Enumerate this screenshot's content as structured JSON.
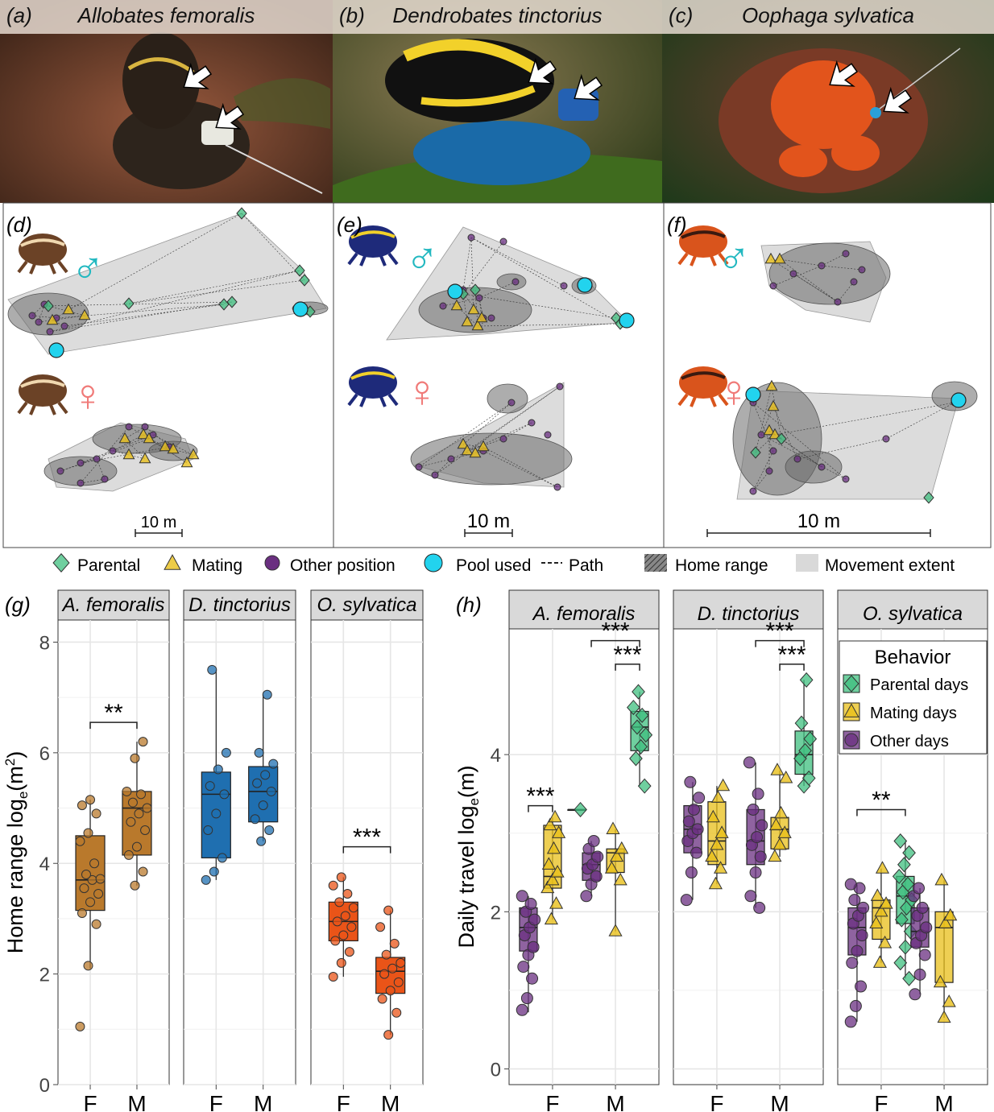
{
  "photo_panels": [
    {
      "label": "(a)",
      "species": "Allobates femoralis",
      "bg": "#7a4a35",
      "frog": "#2d241c",
      "accent": "#d9b540"
    },
    {
      "label": "(b)",
      "species": "Dendrobates tinctorius",
      "bg": "#4a6a2a",
      "frog": "#111111",
      "accent": "#f2d12a"
    },
    {
      "label": "(c)",
      "species": "Oophaga sylvatica",
      "bg": "#5b3a26",
      "frog": "#e2541c",
      "accent": "#1f1f1f"
    }
  ],
  "map_panels": [
    {
      "label": "(d)",
      "scale": "10 m",
      "male_symbol": "♂",
      "female_symbol": "♀",
      "frog_color": "#6b4226",
      "stripe": "#f0d8b0"
    },
    {
      "label": "(e)",
      "scale": "10 m",
      "male_symbol": "♂",
      "female_symbol": "♀",
      "frog_color": "#1e2a7a",
      "stripe": "#f2d12a"
    },
    {
      "label": "(f)",
      "scale": "10 m",
      "male_symbol": "♂",
      "female_symbol": "♀",
      "frog_color": "#d9541c",
      "stripe": "#3a1a10"
    }
  ],
  "legend": {
    "items": [
      "Parental",
      "Mating",
      "Other position",
      "Pool used",
      "Path",
      "Home range",
      "Movement extent"
    ]
  },
  "colors": {
    "parental": "#3fbf7f",
    "mating": "#e8bf1a",
    "other": "#6a2f80",
    "pool": "#22d3ee",
    "male_symbol": "#22b8c0",
    "female_symbol": "#f07a78",
    "femoralis": "#b9792c",
    "tinctorius": "#1f6fb0",
    "sylvatica": "#ea5418",
    "strip": "#d9d9d9",
    "grid": "#e6e6e6"
  },
  "chart_data": [
    {
      "panel": "(g)",
      "type": "box",
      "ylabel": "Home range log",
      "ylabel_sub": "e",
      "ylabel_unit": "(m",
      "ylabel_sup": "2",
      "ylabel_end": ")",
      "ylim": [
        0,
        8.4
      ],
      "yticks": [
        0,
        2,
        4,
        6,
        8
      ],
      "categories": [
        "F",
        "M"
      ],
      "facets": [
        {
          "title": "A. femoralis",
          "color": "#b9792c",
          "boxes": [
            {
              "x": "F",
              "q1": 3.15,
              "median": 3.7,
              "q3": 4.5,
              "whisker_low": 2.1,
              "whisker_high": 5.15,
              "points": [
                1.05,
                2.15,
                2.9,
                3.1,
                3.3,
                3.45,
                3.55,
                3.7,
                3.72,
                3.8,
                4.0,
                4.4,
                4.55,
                4.9,
                5.05,
                5.15
              ]
            },
            {
              "x": "M",
              "q1": 4.15,
              "median": 5.0,
              "q3": 5.3,
              "whisker_low": 3.6,
              "whisker_high": 6.2,
              "points": [
                3.6,
                3.85,
                4.15,
                4.3,
                4.6,
                4.75,
                4.9,
                5.0,
                5.1,
                5.25,
                5.3,
                5.9,
                6.2
              ]
            }
          ],
          "sig": [
            {
              "from": "F",
              "to": "M",
              "label": "**",
              "y": 6.55
            }
          ]
        },
        {
          "title": "D. tinctorius",
          "color": "#1f6fb0",
          "boxes": [
            {
              "x": "F",
              "q1": 4.1,
              "median": 5.25,
              "q3": 5.65,
              "whisker_low": 3.7,
              "whisker_high": 7.5,
              "points": [
                3.7,
                3.85,
                4.1,
                4.6,
                4.9,
                5.25,
                5.4,
                5.7,
                6.0,
                7.5
              ]
            },
            {
              "x": "M",
              "q1": 4.75,
              "median": 5.3,
              "q3": 5.75,
              "whisker_low": 4.4,
              "whisker_high": 7.05,
              "points": [
                4.4,
                4.6,
                4.8,
                5.05,
                5.3,
                5.45,
                5.6,
                5.8,
                6.0,
                7.05
              ]
            }
          ],
          "sig": []
        },
        {
          "title": "O. sylvatica",
          "color": "#ea5418",
          "boxes": [
            {
              "x": "F",
              "q1": 2.6,
              "median": 2.95,
              "q3": 3.3,
              "whisker_low": 1.95,
              "whisker_high": 3.75,
              "points": [
                1.95,
                2.2,
                2.4,
                2.6,
                2.7,
                2.85,
                2.95,
                3.05,
                3.2,
                3.3,
                3.45,
                3.6,
                3.75
              ]
            },
            {
              "x": "M",
              "q1": 1.65,
              "median": 2.05,
              "q3": 2.3,
              "whisker_low": 0.9,
              "whisker_high": 3.15,
              "points": [
                0.9,
                1.3,
                1.55,
                1.7,
                1.85,
                2.0,
                2.1,
                2.2,
                2.35,
                2.55,
                2.85,
                3.15
              ]
            }
          ],
          "sig": [
            {
              "from": "F",
              "to": "M",
              "label": "***",
              "y": 4.3
            }
          ]
        }
      ]
    },
    {
      "panel": "(h)",
      "type": "box",
      "ylabel": "Daily travel log",
      "ylabel_sub": "e",
      "ylabel_unit": "(m)",
      "ylim": [
        -0.2,
        5.6
      ],
      "yticks": [
        0,
        2,
        4
      ],
      "categories": [
        "F",
        "M"
      ],
      "series": [
        {
          "name": "Parental days",
          "color": "#3fbf7f",
          "marker": "diamond"
        },
        {
          "name": "Mating days",
          "color": "#e8bf1a",
          "marker": "triangle"
        },
        {
          "name": "Other days",
          "color": "#6a2f80",
          "marker": "circle"
        }
      ],
      "legend_title": "Behavior",
      "facets": [
        {
          "title": "A. femoralis",
          "boxes": [
            {
              "x": "F",
              "series": "Other days",
              "q1": 1.5,
              "median": 1.8,
              "q3": 2.05,
              "whisker_low": 0.72,
              "whisker_high": 2.2,
              "points": [
                0.75,
                0.9,
                1.15,
                1.3,
                1.45,
                1.55,
                1.7,
                1.8,
                1.9,
                2.0,
                2.1,
                2.2
              ]
            },
            {
              "x": "F",
              "series": "Mating days",
              "q1": 2.3,
              "median": 2.45,
              "q3": 3.1,
              "whisker_low": 1.9,
              "whisker_high": 3.2,
              "points": [
                1.9,
                2.1,
                2.3,
                2.4,
                2.5,
                2.6,
                2.8,
                3.0,
                3.1,
                3.2
              ]
            },
            {
              "x": "F",
              "series": "Parental days",
              "q1": 3.3,
              "median": 3.3,
              "q3": 3.3,
              "whisker_low": 3.3,
              "whisker_high": 3.3,
              "points": [
                3.3
              ]
            },
            {
              "x": "M",
              "series": "Other days",
              "q1": 2.4,
              "median": 2.6,
              "q3": 2.75,
              "whisker_low": 2.2,
              "whisker_high": 2.9,
              "points": [
                2.2,
                2.35,
                2.45,
                2.55,
                2.6,
                2.7,
                2.8,
                2.9
              ]
            },
            {
              "x": "M",
              "series": "Mating days",
              "q1": 2.5,
              "median": 2.75,
              "q3": 2.8,
              "whisker_low": 1.75,
              "whisker_high": 3.05,
              "points": [
                1.75,
                2.4,
                2.55,
                2.7,
                2.8,
                3.05
              ]
            },
            {
              "x": "M",
              "series": "Parental days",
              "q1": 4.05,
              "median": 4.35,
              "q3": 4.55,
              "whisker_low": 3.6,
              "whisker_high": 4.8,
              "points": [
                3.6,
                3.95,
                4.1,
                4.25,
                4.35,
                4.5,
                4.6,
                4.8
              ]
            }
          ],
          "sig": [
            {
              "from": "F:Other days",
              "to": "F:Mating days",
              "label": "***",
              "y": 3.35
            },
            {
              "from": "M:Other days",
              "to": "M:Parental days",
              "label": "***",
              "y": 5.45
            },
            {
              "from": "M:Mating days",
              "to": "M:Parental days",
              "label": "***",
              "y": 5.15
            }
          ]
        },
        {
          "title": "D. tinctorius",
          "boxes": [
            {
              "x": "F",
              "series": "Other days",
              "q1": 2.75,
              "median": 3.05,
              "q3": 3.35,
              "whisker_low": 2.15,
              "whisker_high": 3.65,
              "points": [
                2.15,
                2.5,
                2.75,
                2.9,
                3.0,
                3.05,
                3.15,
                3.3,
                3.45,
                3.65
              ]
            },
            {
              "x": "F",
              "series": "Mating days",
              "q1": 2.6,
              "median": 2.9,
              "q3": 3.4,
              "whisker_low": 2.35,
              "whisker_high": 3.6,
              "points": [
                2.35,
                2.55,
                2.7,
                2.85,
                3.0,
                3.2,
                3.45,
                3.6
              ]
            },
            {
              "x": "M",
              "series": "Other days",
              "q1": 2.6,
              "median": 2.9,
              "q3": 3.3,
              "whisker_low": 2.05,
              "whisker_high": 3.9,
              "points": [
                2.05,
                2.2,
                2.5,
                2.7,
                2.85,
                2.95,
                3.1,
                3.3,
                3.5,
                3.9
              ]
            },
            {
              "x": "M",
              "series": "Mating days",
              "q1": 2.8,
              "median": 3.05,
              "q3": 3.2,
              "whisker_low": 2.7,
              "whisker_high": 3.8,
              "points": [
                2.7,
                2.85,
                3.0,
                3.1,
                3.25,
                3.7,
                3.8
              ]
            },
            {
              "x": "M",
              "series": "Parental days",
              "q1": 3.75,
              "median": 4.0,
              "q3": 4.3,
              "whisker_low": 3.6,
              "whisker_high": 4.95,
              "points": [
                3.6,
                3.7,
                3.95,
                4.05,
                4.2,
                4.4,
                4.95
              ]
            }
          ],
          "sig": [
            {
              "from": "M:Other days",
              "to": "M:Parental days",
              "label": "***",
              "y": 5.45
            },
            {
              "from": "M:Mating days",
              "to": "M:Parental days",
              "label": "***",
              "y": 5.15
            }
          ]
        },
        {
          "title": "O. sylvatica",
          "boxes": [
            {
              "x": "F",
              "series": "Other days",
              "q1": 1.45,
              "median": 1.8,
              "q3": 2.05,
              "whisker_low": 0.6,
              "whisker_high": 2.35,
              "points": [
                0.6,
                0.8,
                1.05,
                1.35,
                1.5,
                1.7,
                1.85,
                1.95,
                2.05,
                2.15,
                2.3,
                2.35
              ]
            },
            {
              "x": "F",
              "series": "Mating days",
              "q1": 1.65,
              "median": 2.05,
              "q3": 2.15,
              "whisker_low": 1.35,
              "whisker_high": 2.55,
              "points": [
                1.35,
                1.6,
                1.85,
                2.0,
                2.1,
                2.2,
                2.55
              ]
            },
            {
              "x": "F",
              "series": "Parental days",
              "q1": 1.85,
              "median": 2.2,
              "q3": 2.45,
              "whisker_low": 1.15,
              "whisker_high": 2.9,
              "points": [
                1.15,
                1.35,
                1.55,
                1.75,
                1.9,
                2.05,
                2.15,
                2.25,
                2.35,
                2.45,
                2.6,
                2.75,
                2.9
              ]
            },
            {
              "x": "M",
              "series": "Other days",
              "q1": 1.55,
              "median": 1.75,
              "q3": 2.05,
              "whisker_low": 0.95,
              "whisker_high": 2.3,
              "points": [
                0.95,
                1.2,
                1.45,
                1.6,
                1.7,
                1.8,
                1.95,
                2.05,
                2.2,
                2.3
              ]
            },
            {
              "x": "M",
              "series": "Mating days",
              "q1": 1.1,
              "median": 1.8,
              "q3": 2.0,
              "whisker_low": 0.65,
              "whisker_high": 2.4,
              "points": [
                0.65,
                0.85,
                1.1,
                1.85,
                1.95,
                2.4
              ]
            }
          ],
          "sig": [
            {
              "from": "F:Other days",
              "to": "F:Parental days",
              "label": "**",
              "y": 3.3
            }
          ]
        }
      ]
    }
  ]
}
